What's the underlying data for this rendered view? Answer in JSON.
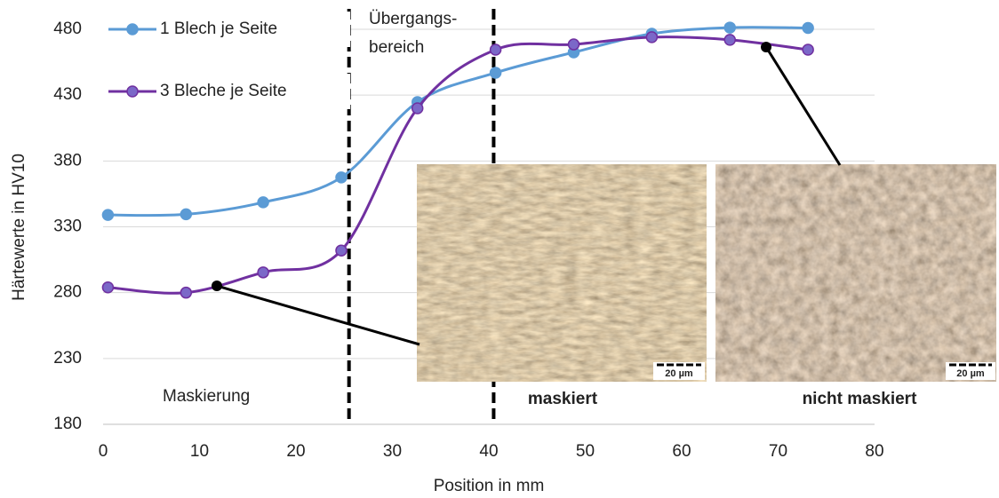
{
  "chart_data": {
    "type": "line",
    "y_label": "Härtewerte  in HV10",
    "x_label": "Position in mm",
    "xlim": [
      0,
      80
    ],
    "xticks": [
      0,
      10,
      20,
      30,
      40,
      50,
      60,
      70,
      80
    ],
    "ylim": [
      180,
      480
    ],
    "yticks": [
      180,
      230,
      280,
      330,
      380,
      430,
      480
    ],
    "grid": true,
    "legend": "upper left",
    "series": [
      {
        "name": "1 Blech je Seite",
        "color": "#5b9bd5",
        "x": [
          0.5,
          8.6,
          16.6,
          24.7,
          32.6,
          40.7,
          48.8,
          56.9,
          65,
          73.1
        ],
        "values": [
          339,
          339.5,
          348.6,
          367.5,
          424.7,
          447,
          462.5,
          476.6,
          481.3,
          481
        ]
      },
      {
        "name": "3 Bleche je Seite",
        "color": "#7030a0",
        "x": [
          0.5,
          8.6,
          16.6,
          24.7,
          32.6,
          40.7,
          48.8,
          56.9,
          65,
          73.1
        ],
        "values": [
          284,
          280,
          295.4,
          312,
          420,
          464.5,
          468.5,
          474,
          472,
          464.5
        ]
      }
    ],
    "boundaries": [
      25.5,
      40.5
    ],
    "annotations": {
      "transition": [
        "Übergangs-",
        "bereich"
      ],
      "masking": "Maskierung",
      "image_left": "maskiert",
      "image_right": "nicht maskiert",
      "scale_left": "20 µm",
      "scale_right": "20 µm"
    }
  }
}
